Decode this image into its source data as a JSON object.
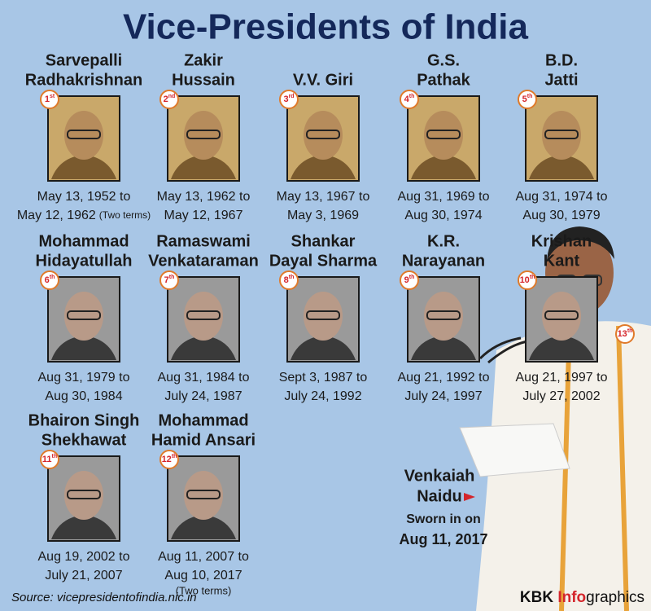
{
  "title": "Vice-Presidents of India",
  "people": [
    {
      "name": [
        "Sarvepalli",
        "Radhakrishnan"
      ],
      "rank": "1",
      "rank_suffix": "st",
      "dates": [
        "May 13, 1952 to",
        "May 12, 1962"
      ],
      "note": "(Two terms)"
    },
    {
      "name": [
        "Zakir",
        "Hussain"
      ],
      "rank": "2",
      "rank_suffix": "nd",
      "dates": [
        "May 13, 1962 to",
        "May 12, 1967"
      ]
    },
    {
      "name": [
        "V.V. Giri"
      ],
      "rank": "3",
      "rank_suffix": "rd",
      "dates": [
        "May 13, 1967 to",
        "May 3, 1969"
      ]
    },
    {
      "name": [
        "G.S.",
        "Pathak"
      ],
      "rank": "4",
      "rank_suffix": "th",
      "dates": [
        "Aug 31, 1969 to",
        "Aug 30, 1974"
      ]
    },
    {
      "name": [
        "B.D.",
        "Jatti"
      ],
      "rank": "5",
      "rank_suffix": "th",
      "dates": [
        "Aug 31, 1974 to",
        "Aug 30, 1979"
      ]
    },
    {
      "name": [
        "Mohammad",
        "Hidayatullah"
      ],
      "rank": "6",
      "rank_suffix": "th",
      "dates": [
        "Aug 31, 1979 to",
        "Aug 30, 1984"
      ]
    },
    {
      "name": [
        "Ramaswami",
        "Venkataraman"
      ],
      "rank": "7",
      "rank_suffix": "th",
      "dates": [
        "Aug 31, 1984 to",
        "July 24, 1987"
      ]
    },
    {
      "name": [
        "Shankar",
        "Dayal Sharma"
      ],
      "rank": "8",
      "rank_suffix": "th",
      "dates": [
        "Sept 3, 1987 to",
        "July 24, 1992"
      ]
    },
    {
      "name": [
        "K.R.",
        "Narayanan"
      ],
      "rank": "9",
      "rank_suffix": "th",
      "dates": [
        "Aug 21, 1992 to",
        "July 24, 1997"
      ]
    },
    {
      "name": [
        "Krishan",
        "Kant"
      ],
      "rank": "10",
      "rank_suffix": "th",
      "dates": [
        "Aug 21, 1997 to",
        "July 27, 2002"
      ]
    },
    {
      "name": [
        "Bhairon Singh",
        "Shekhawat"
      ],
      "rank": "11",
      "rank_suffix": "th",
      "dates": [
        "Aug 19, 2002 to",
        "July 21, 2007"
      ]
    },
    {
      "name": [
        "Mohammad",
        "Hamid Ansari"
      ],
      "rank": "12",
      "rank_suffix": "th",
      "dates": [
        "Aug 11, 2007 to",
        "Aug 10, 2017"
      ],
      "note": "(Two terms)"
    }
  ],
  "featured": {
    "name": [
      "Venkaiah",
      "Naidu"
    ],
    "rank": "13",
    "rank_suffix": "th",
    "caption": "Sworn in on",
    "date": "Aug 11, 2017"
  },
  "source": "Source: vicepresidentofindia.nic.in",
  "credit": [
    "KBK ",
    "Info",
    "graphics"
  ]
}
